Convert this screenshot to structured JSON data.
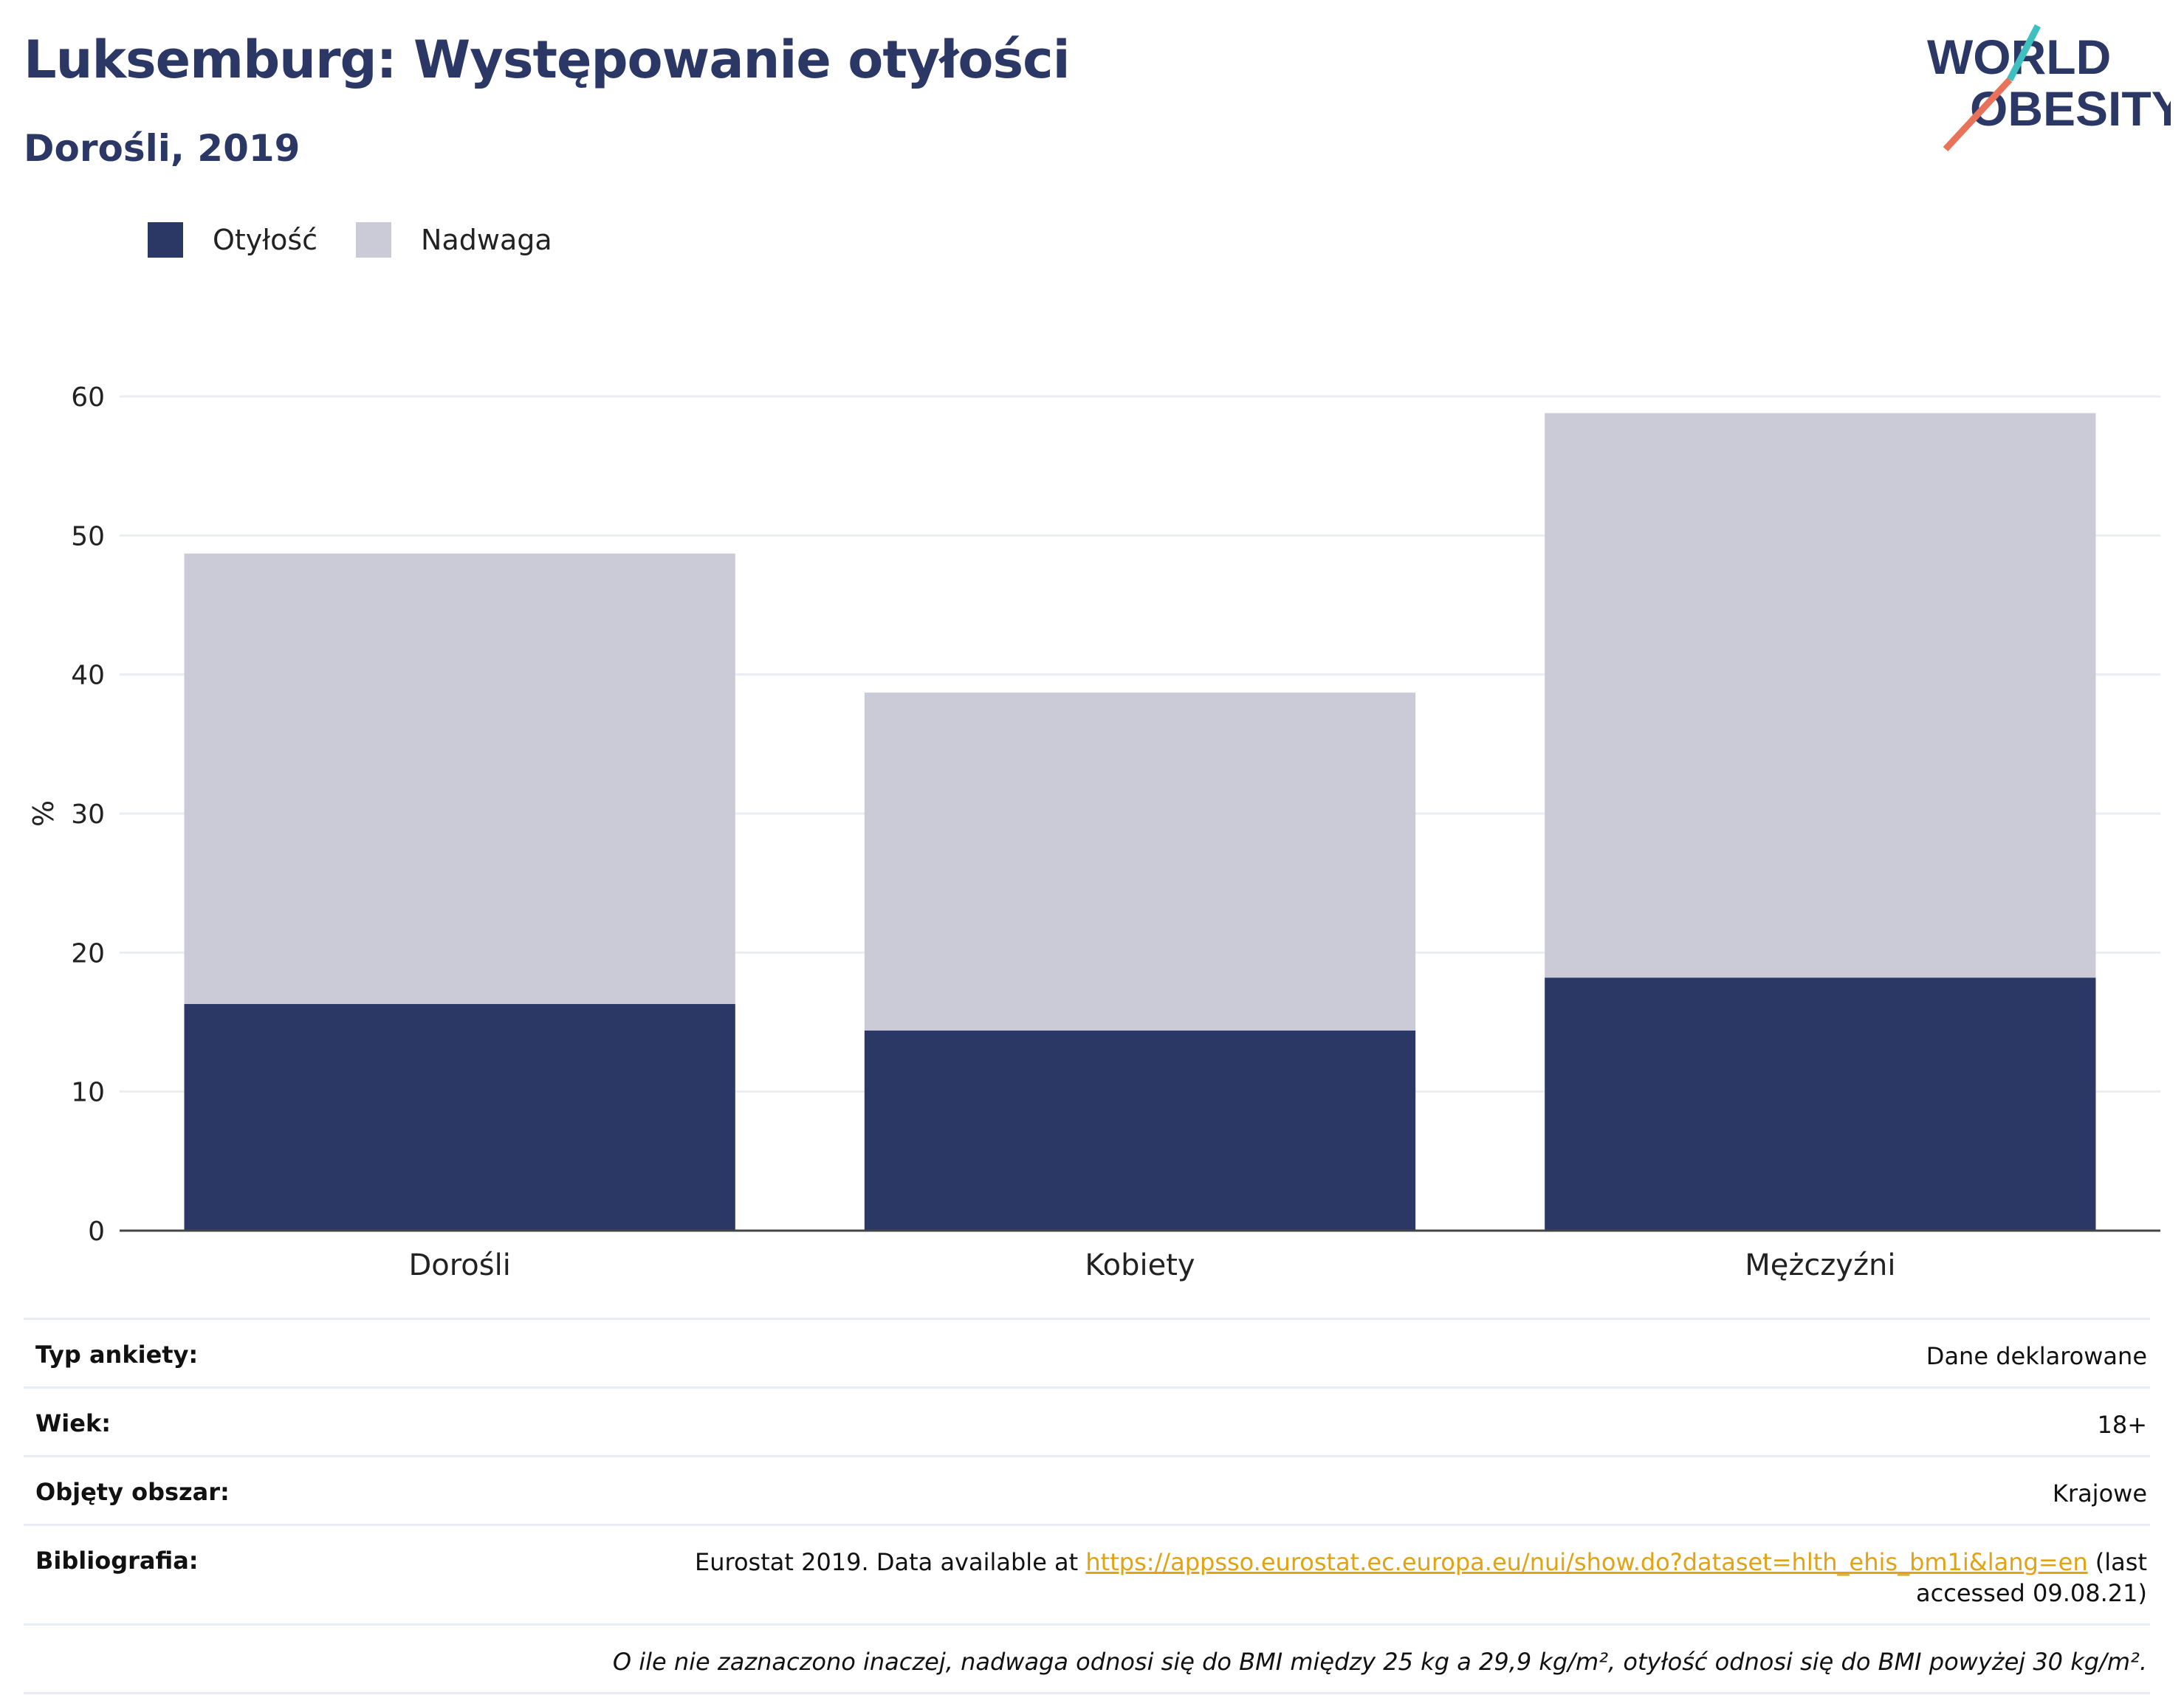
{
  "header": {
    "title": "Luksemburg: Występowanie otyłości",
    "subtitle": "Dorośli, 2019",
    "logo_line1": "WORLD",
    "logo_line2": "OBESITY"
  },
  "legend": {
    "items": [
      {
        "label": "Otyłość",
        "color": "#2b3765"
      },
      {
        "label": "Nadwaga",
        "color": "#cacbd7"
      }
    ]
  },
  "chart_data": {
    "type": "bar",
    "stacked": true,
    "categories": [
      "Dorośli",
      "Kobiety",
      "Mężczyźni"
    ],
    "series": [
      {
        "name": "Otyłość",
        "values": [
          16.3,
          14.4,
          18.2
        ],
        "color": "#2b3765"
      },
      {
        "name": "Nadwaga",
        "values": [
          32.4,
          24.3,
          40.6
        ],
        "color": "#cacbd7"
      }
    ],
    "ylabel": "%",
    "ylim": [
      0,
      60
    ],
    "yticks": [
      0,
      10,
      20,
      30,
      40,
      50,
      60
    ],
    "grid": true,
    "legend_position": "top-left"
  },
  "info": {
    "survey_type_label": "Typ ankiety:",
    "survey_type_value": "Dane deklarowane",
    "age_label": "Wiek:",
    "age_value": "18+",
    "coverage_label": "Objęty obszar:",
    "coverage_value": "Krajowe",
    "bibliography_label": "Bibliografia:",
    "bibliography_prefix": "Eurostat 2019. Data available at ",
    "bibliography_link": "https://appsso.eurostat.ec.europa.eu/nui/show.do?dataset=hlth_ehis_bm1i&lang=en",
    "bibliography_suffix": " (last accessed 09.08.21)",
    "note": "O ile nie zaznaczono inaczej, nadwaga odnosi się do BMI między 25 kg a 29,9 kg/m², otyłość odnosi się do BMI powyżej 30 kg/m²."
  }
}
